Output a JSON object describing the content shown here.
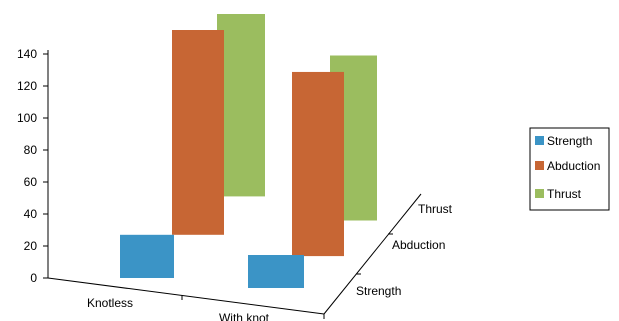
{
  "colors": {
    "Strength": "#3b94c6",
    "Abduction": "#c76634",
    "Thrust": "#9bbd5f"
  },
  "chart_data": {
    "type": "bar",
    "subtype": "3d-floating",
    "categories": [
      "Knotless",
      "With knot"
    ],
    "depth_categories": [
      "Strength",
      "Abduction",
      "Thrust"
    ],
    "series": [
      {
        "name": "Strength",
        "ranges": [
          [
            0,
            27
          ],
          [
            0,
            22
          ]
        ]
      },
      {
        "name": "Abduction",
        "ranges": [
          [
            27,
            155
          ],
          [
            22,
            149
          ]
        ]
      },
      {
        "name": "Thrust",
        "ranges": [
          [
            51,
            165
          ],
          [
            45,
            155
          ]
        ]
      }
    ],
    "y_ticks": [
      "0",
      "20",
      "40",
      "60",
      "80",
      "100",
      "120",
      "140"
    ],
    "ylim": [
      0,
      140
    ],
    "legend": {
      "position": "right",
      "items": [
        "Strength",
        "Abduction",
        "Thrust"
      ]
    },
    "grid": false
  }
}
